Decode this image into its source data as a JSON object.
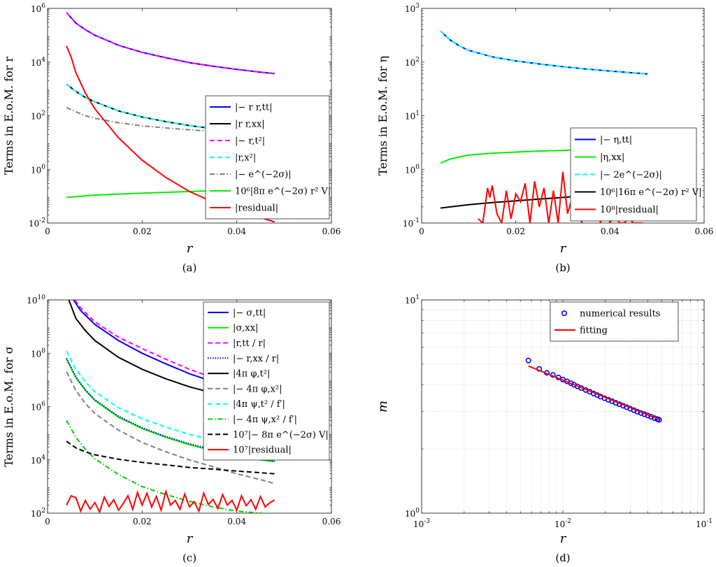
{
  "chart_data": [
    {
      "type": "line",
      "caption": "(a)",
      "ylabel": "Terms in E.o.M. for r",
      "xlabel": "r",
      "x_ticks": [
        "0",
        "0.02",
        "0.04",
        "0.06"
      ],
      "y_ticks": [
        {
          "m": "10",
          "e": "-2"
        },
        {
          "m": "10",
          "e": "0"
        },
        {
          "m": "10",
          "e": "2"
        },
        {
          "m": "10",
          "e": "4"
        },
        {
          "m": "10",
          "e": "6"
        }
      ],
      "xlim": [
        0,
        0.06
      ],
      "ylim": [
        0.01,
        1000000
      ],
      "yscale": "log",
      "legend_position": "right",
      "series": [
        {
          "name": "|− r r,tt|",
          "color": "#0000ff",
          "dash": "solid",
          "x": [
            0.004,
            0.006,
            0.008,
            0.01,
            0.015,
            0.02,
            0.025,
            0.03,
            0.035,
            0.04,
            0.045,
            0.048
          ],
          "y": [
            700000,
            280000,
            160000,
            100000,
            42000,
            23000,
            14500,
            9500,
            7000,
            5300,
            4200,
            3700
          ]
        },
        {
          "name": "|r r,xx|",
          "color": "#000000",
          "dash": "solid",
          "x": [
            0.004,
            0.006,
            0.008,
            0.01,
            0.015,
            0.02,
            0.025,
            0.03,
            0.035
          ],
          "y": [
            1500,
            800,
            480,
            330,
            150,
            90,
            60,
            43,
            33
          ]
        },
        {
          "name": "|− r,t²|",
          "color": "#ff00ff",
          "dash": "dash",
          "x": [
            0.004,
            0.006,
            0.008,
            0.01,
            0.015,
            0.02,
            0.025,
            0.03,
            0.035,
            0.04,
            0.045,
            0.048
          ],
          "y": [
            700000,
            280000,
            160000,
            100000,
            42000,
            23000,
            14500,
            9500,
            7000,
            5300,
            4200,
            3700
          ]
        },
        {
          "name": "|r,x²|",
          "color": "#00ffff",
          "dash": "dash",
          "x": [
            0.004,
            0.006,
            0.008,
            0.01,
            0.015,
            0.02,
            0.025,
            0.03,
            0.035
          ],
          "y": [
            1500,
            800,
            480,
            330,
            150,
            90,
            60,
            43,
            33
          ]
        },
        {
          "name": "|− e^(−2σ)|",
          "color": "#808080",
          "dash": "dashdot",
          "x": [
            0.004,
            0.006,
            0.008,
            0.01,
            0.015,
            0.02,
            0.025,
            0.03,
            0.035
          ],
          "y": [
            200,
            140,
            100,
            80,
            55,
            42,
            35,
            30,
            26
          ]
        },
        {
          "name": "10⁶|8π e^(−2σ) r² V|",
          "color": "#00ee00",
          "dash": "solid",
          "x": [
            0.004,
            0.01,
            0.02,
            0.03,
            0.035
          ],
          "y": [
            0.09,
            0.11,
            0.13,
            0.15,
            0.16
          ]
        },
        {
          "name": "|residual|",
          "color": "#ff0000",
          "dash": "solid",
          "x": [
            0.004,
            0.005,
            0.006,
            0.008,
            0.01,
            0.015,
            0.02,
            0.025,
            0.03,
            0.035,
            0.04,
            0.045,
            0.048
          ],
          "y": [
            40000,
            15000,
            4000,
            700,
            180,
            15,
            2.2,
            0.5,
            0.15,
            0.06,
            0.03,
            0.016,
            0.011
          ]
        }
      ]
    },
    {
      "type": "line",
      "caption": "(b)",
      "ylabel": "Terms in E.o.M. for η",
      "xlabel": "r",
      "x_ticks": [
        "0",
        "0.02",
        "0.04",
        "0.06"
      ],
      "y_ticks": [
        {
          "m": "10",
          "e": "-1"
        },
        {
          "m": "10",
          "e": "0"
        },
        {
          "m": "10",
          "e": "1"
        },
        {
          "m": "10",
          "e": "2"
        },
        {
          "m": "10",
          "e": "3"
        }
      ],
      "xlim": [
        0,
        0.06
      ],
      "ylim": [
        0.1,
        1000
      ],
      "yscale": "log",
      "legend_position": "right",
      "series": [
        {
          "name": "|− η,tt|",
          "color": "#0000ff",
          "dash": "solid",
          "x": [
            0.004,
            0.006,
            0.008,
            0.01,
            0.015,
            0.02,
            0.025,
            0.03,
            0.035,
            0.04,
            0.045,
            0.048
          ],
          "y": [
            380,
            260,
            200,
            165,
            125,
            105,
            92,
            82,
            74,
            68,
            63,
            60
          ]
        },
        {
          "name": "|η,xx|",
          "color": "#00ee00",
          "dash": "solid",
          "x": [
            0.004,
            0.006,
            0.008,
            0.01,
            0.015,
            0.02,
            0.025,
            0.03,
            0.032
          ],
          "y": [
            1.3,
            1.55,
            1.7,
            1.85,
            2.0,
            2.1,
            2.2,
            2.25,
            2.3
          ]
        },
        {
          "name": "|− 2e^(−2σ)|",
          "color": "#00ffff",
          "dash": "dash",
          "x": [
            0.004,
            0.006,
            0.008,
            0.01,
            0.015,
            0.02,
            0.025,
            0.03,
            0.035,
            0.04,
            0.045,
            0.048
          ],
          "y": [
            380,
            260,
            200,
            165,
            125,
            105,
            92,
            82,
            74,
            68,
            63,
            60
          ]
        },
        {
          "name": "10⁶|16π e^(−2σ) r² V|",
          "color": "#000000",
          "dash": "solid",
          "x": [
            0.004,
            0.01,
            0.015,
            0.02,
            0.025,
            0.03,
            0.032
          ],
          "y": [
            0.19,
            0.22,
            0.24,
            0.26,
            0.28,
            0.3,
            0.31
          ]
        },
        {
          "name": "10⁸|residual|",
          "color": "#ff0000",
          "dash": "solid",
          "x": [
            0.012,
            0.013,
            0.014,
            0.0145,
            0.015,
            0.016,
            0.017,
            0.018,
            0.019,
            0.02,
            0.021,
            0.022,
            0.023,
            0.024,
            0.025,
            0.026,
            0.027,
            0.028,
            0.029,
            0.03,
            0.031,
            0.032,
            0.033,
            0.034,
            0.035,
            0.036,
            0.037,
            0.038,
            0.039,
            0.04,
            0.041,
            0.042,
            0.043,
            0.044,
            0.045,
            0.046,
            0.047
          ],
          "y": [
            0.12,
            0.1,
            0.45,
            0.3,
            0.5,
            0.15,
            0.1,
            0.4,
            0.12,
            0.35,
            0.25,
            0.55,
            0.1,
            0.6,
            0.2,
            0.45,
            0.1,
            0.4,
            0.1,
            0.9,
            0.15,
            0.3,
            0.4,
            0.1,
            0.6,
            0.15,
            0.2,
            0.1,
            0.3,
            0.1,
            0.15,
            0.1,
            0.1,
            0.12,
            0.1,
            0.1,
            0.1
          ]
        }
      ]
    },
    {
      "type": "line",
      "caption": "(c)",
      "ylabel": "Terms in E.o.M. for σ",
      "xlabel": "r",
      "x_ticks": [
        "0",
        "0.02",
        "0.04",
        "0.06"
      ],
      "y_ticks": [
        {
          "m": "10",
          "e": "2"
        },
        {
          "m": "10",
          "e": "4"
        },
        {
          "m": "10",
          "e": "6"
        },
        {
          "m": "10",
          "e": "8"
        },
        {
          "m": "10",
          "e": "10"
        }
      ],
      "xlim": [
        0,
        0.06
      ],
      "ylim": [
        100,
        10000000000
      ],
      "yscale": "log",
      "legend_position": "right",
      "series": [
        {
          "name": "|− σ,tt|",
          "color": "#0000ff",
          "dash": "solid",
          "x": [
            0.0055,
            0.007,
            0.01,
            0.015,
            0.02,
            0.025,
            0.03,
            0.035,
            0.04,
            0.045,
            0.048
          ],
          "y": [
            10000000000,
            4000000000,
            1200000000,
            300000000,
            100000000,
            40000000,
            17000000,
            8500000,
            4500000,
            2800000,
            2200000
          ]
        },
        {
          "name": "|σ,xx|",
          "color": "#00ee00",
          "dash": "solid",
          "x": [
            0.004,
            0.006,
            0.008,
            0.01,
            0.015,
            0.02,
            0.025,
            0.03,
            0.035,
            0.04,
            0.045,
            0.048
          ],
          "y": [
            60000000,
            12000000,
            4000000,
            1700000,
            400000,
            150000,
            70000,
            37000,
            22000,
            14000,
            10000,
            8500
          ]
        },
        {
          "name": "|r,tt / r|",
          "color": "#ff00ff",
          "dash": "dash",
          "x": [
            0.0058,
            0.007,
            0.01,
            0.015,
            0.02,
            0.025,
            0.03,
            0.035,
            0.04,
            0.045,
            0.048
          ],
          "y": [
            10000000000,
            5000000000,
            1500000000,
            400000000,
            150000000,
            60000000,
            25000000,
            12000000,
            7000000,
            4500000,
            3500000
          ]
        },
        {
          "name": "|− r,xx / r|",
          "color": "#0000cc",
          "dash": "dot",
          "x": [
            0.004,
            0.006,
            0.008,
            0.01,
            0.015,
            0.02,
            0.025,
            0.03,
            0.035,
            0.04,
            0.045,
            0.048
          ],
          "y": [
            65000000,
            13000000,
            4300000,
            1800000,
            430000,
            160000,
            75000,
            40000,
            24000,
            15000,
            11000,
            9000
          ]
        },
        {
          "name": "|4π φ,t²|",
          "color": "#000000",
          "dash": "solid",
          "x": [
            0.0045,
            0.006,
            0.008,
            0.01,
            0.015,
            0.02,
            0.025,
            0.03,
            0.035,
            0.04,
            0.045,
            0.048
          ],
          "y": [
            10000000000,
            2000000000,
            700000000,
            300000000,
            70000000,
            25000000,
            11000000,
            5500000,
            3200000,
            2000000,
            1400000,
            1200000
          ]
        },
        {
          "name": "|− 4π φ,x²|",
          "color": "#808080",
          "dash": "dash",
          "x": [
            0.004,
            0.006,
            0.008,
            0.01,
            0.015,
            0.02,
            0.025,
            0.03,
            0.035,
            0.04,
            0.045,
            0.048
          ],
          "y": [
            20000000,
            4000000,
            1300000,
            550000,
            130000,
            45000,
            20000,
            10000,
            5500,
            3000,
            1800,
            1300
          ]
        },
        {
          "name": "|4π ψ,t² / f′|",
          "color": "#00ffff",
          "dash": "dash",
          "x": [
            0.004,
            0.006,
            0.008,
            0.01,
            0.015,
            0.02,
            0.025,
            0.03,
            0.035,
            0.04,
            0.045,
            0.048
          ],
          "y": [
            120000000,
            25000000,
            8500000,
            3600000,
            900000,
            350000,
            170000,
            90000,
            55000,
            38000,
            30000,
            27000
          ]
        },
        {
          "name": "|− 4π ψ,x² / f′|",
          "color": "#00cc00",
          "dash": "dashdot",
          "x": [
            0.004,
            0.006,
            0.008,
            0.01,
            0.015,
            0.02,
            0.025,
            0.03,
            0.035,
            0.04,
            0.045,
            0.048
          ],
          "y": [
            300000,
            70000,
            25000,
            11000,
            2800,
            1000,
            500,
            280,
            170,
            120,
            100,
            90
          ]
        },
        {
          "name": "10⁷|− 8π e^(−2σ) V|",
          "color": "#000000",
          "dash": "dash",
          "x": [
            0.004,
            0.006,
            0.008,
            0.01,
            0.015,
            0.02,
            0.025,
            0.03,
            0.035,
            0.04,
            0.045,
            0.048
          ],
          "y": [
            50000,
            28000,
            20000,
            15500,
            10500,
            8000,
            6500,
            5200,
            4500,
            3800,
            3300,
            3000
          ]
        },
        {
          "name": "10⁷|residual|",
          "color": "#ff0000",
          "dash": "solid",
          "x": [
            0.004,
            0.005,
            0.006,
            0.007,
            0.008,
            0.009,
            0.01,
            0.011,
            0.012,
            0.013,
            0.014,
            0.015,
            0.016,
            0.017,
            0.018,
            0.019,
            0.02,
            0.021,
            0.022,
            0.023,
            0.024,
            0.025,
            0.026,
            0.027,
            0.028,
            0.029,
            0.03,
            0.031,
            0.032,
            0.033,
            0.034,
            0.035,
            0.036,
            0.037,
            0.038,
            0.039,
            0.04,
            0.041,
            0.042,
            0.043,
            0.044,
            0.045,
            0.046,
            0.047,
            0.048
          ],
          "y": [
            200,
            450,
            380,
            120,
            300,
            140,
            250,
            110,
            400,
            180,
            320,
            130,
            230,
            450,
            140,
            600,
            200,
            560,
            170,
            420,
            130,
            650,
            200,
            300,
            140,
            520,
            170,
            270,
            120,
            560,
            210,
            330,
            150,
            500,
            200,
            300,
            130,
            450,
            190,
            320,
            140,
            420,
            170,
            250,
            310
          ]
        }
      ]
    },
    {
      "type": "scatter",
      "caption": "(d)",
      "ylabel": "m",
      "xlabel": "r",
      "x_ticks": [
        {
          "m": "10",
          "e": "-3"
        },
        {
          "m": "10",
          "e": "-2"
        },
        {
          "m": "10",
          "e": "-1"
        }
      ],
      "y_ticks": [
        {
          "m": "10",
          "e": "0"
        },
        {
          "m": "10",
          "e": "1"
        }
      ],
      "xlim": [
        0.001,
        0.1
      ],
      "ylim": [
        1,
        10
      ],
      "xscale": "log",
      "yscale": "log",
      "grid": true,
      "legend_position": "top-right",
      "series": [
        {
          "name": "numerical results",
          "color": "#0000ff",
          "marker": "circle",
          "x": [
            0.0057,
            0.0068,
            0.0077,
            0.0085,
            0.0093,
            0.01,
            0.0107,
            0.0114,
            0.012,
            0.0127,
            0.0135,
            0.0145,
            0.0155,
            0.0165,
            0.0175,
            0.0185,
            0.0197,
            0.021,
            0.0223,
            0.0237,
            0.0252,
            0.0267,
            0.0283,
            0.03,
            0.0318,
            0.0337,
            0.0357,
            0.0378,
            0.04,
            0.0422,
            0.0445,
            0.0468,
            0.048
          ],
          "y": [
            5.2,
            4.75,
            4.55,
            4.45,
            4.33,
            4.23,
            4.15,
            4.07,
            4.0,
            3.93,
            3.86,
            3.78,
            3.71,
            3.64,
            3.58,
            3.52,
            3.46,
            3.4,
            3.35,
            3.29,
            3.24,
            3.19,
            3.14,
            3.09,
            3.04,
            2.99,
            2.95,
            2.91,
            2.87,
            2.83,
            2.79,
            2.76,
            2.74
          ]
        },
        {
          "name": "fitting",
          "color": "#ff0000",
          "dash": "solid",
          "x": [
            0.0057,
            0.048
          ],
          "y": [
            4.9,
            2.75
          ]
        }
      ]
    }
  ]
}
